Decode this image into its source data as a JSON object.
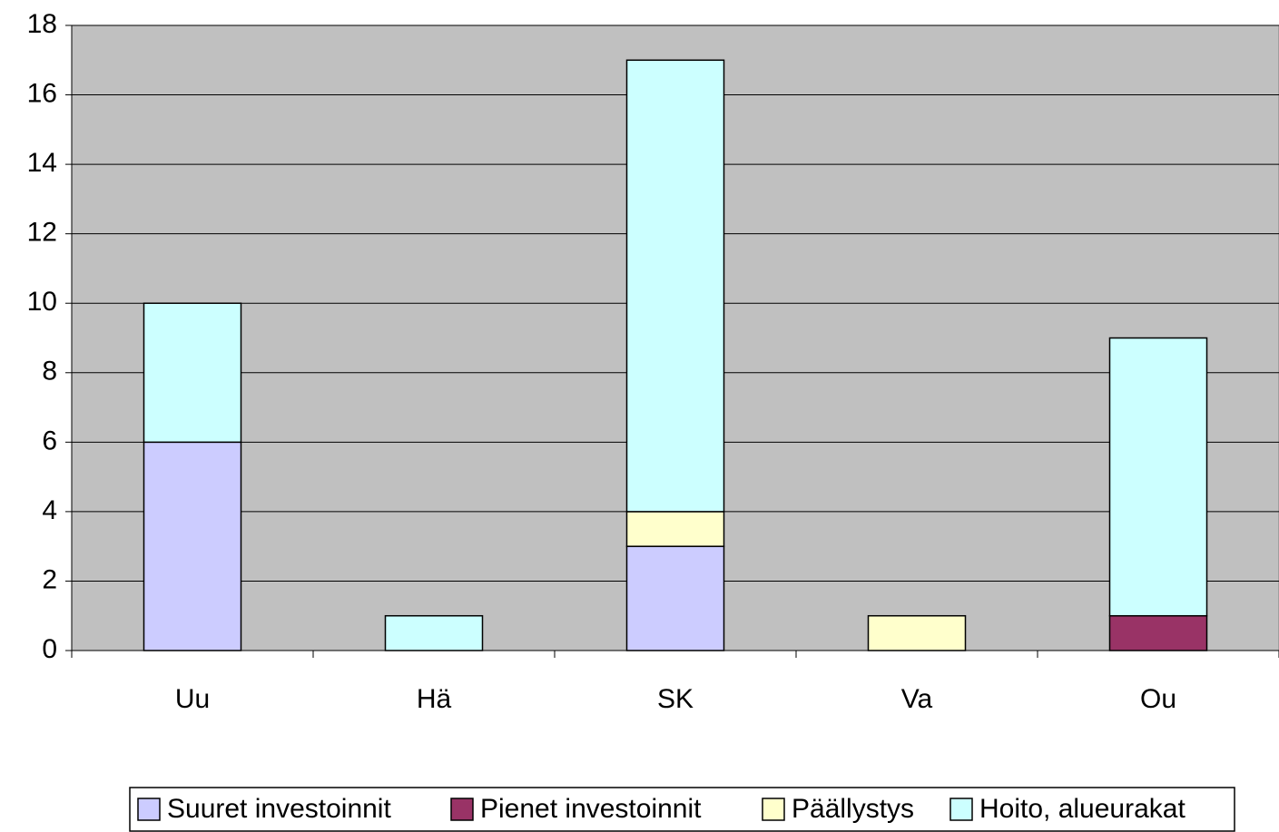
{
  "chart_data": {
    "type": "bar",
    "stacked": true,
    "categories": [
      "Uu",
      "Hä",
      "SK",
      "Va",
      "Ou"
    ],
    "series": [
      {
        "name": "Suuret investoinnit",
        "color": "#ccccff",
        "values": [
          6,
          0,
          3,
          0,
          0
        ]
      },
      {
        "name": "Pienet investoinnit",
        "color": "#993366",
        "values": [
          0,
          0,
          0,
          0,
          1
        ]
      },
      {
        "name": "Päällystys",
        "color": "#ffffcc",
        "values": [
          0,
          0,
          1,
          1,
          0
        ]
      },
      {
        "name": "Hoito, alueurakat",
        "color": "#ccffff",
        "values": [
          4,
          1,
          13,
          0,
          8
        ]
      }
    ],
    "ylim": [
      0,
      18
    ],
    "yticks": [
      0,
      2,
      4,
      6,
      8,
      10,
      12,
      14,
      16,
      18
    ],
    "grid": true,
    "plot_background": "#c0c0c0",
    "legend": "bottom"
  }
}
